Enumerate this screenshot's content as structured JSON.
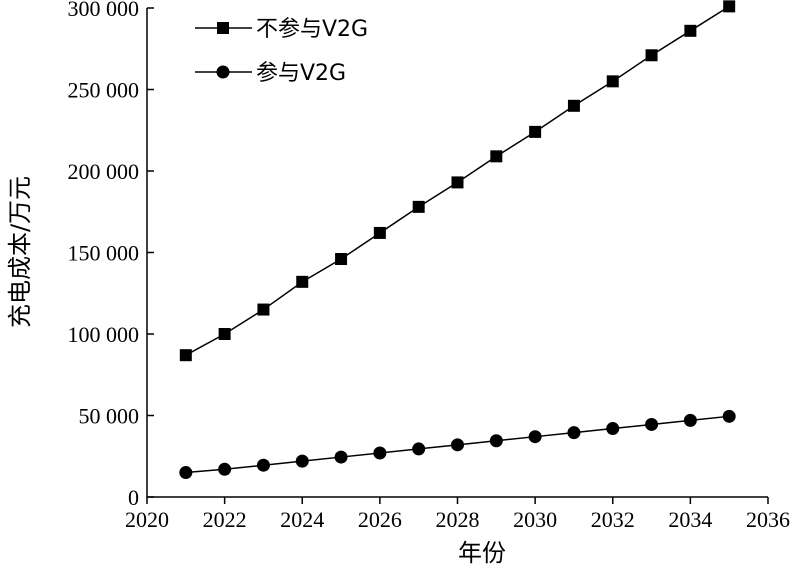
{
  "chart_data": {
    "type": "line",
    "title": "",
    "xlabel": "年份",
    "ylabel": "充电成本/万元",
    "xlim": [
      2020,
      2036
    ],
    "ylim": [
      0,
      300000
    ],
    "xticks": [
      2020,
      2022,
      2024,
      2026,
      2028,
      2030,
      2032,
      2034,
      2036
    ],
    "xtick_labels": [
      "2020",
      "2022",
      "2024",
      "2026",
      "2028",
      "2030",
      "2032",
      "2034",
      "2036"
    ],
    "yticks": [
      0,
      50000,
      100000,
      150000,
      200000,
      250000,
      300000
    ],
    "ytick_labels": [
      "0",
      "50 000",
      "100 000",
      "150 000",
      "200 000",
      "250 000",
      "300 000"
    ],
    "grid": false,
    "legend_position": "top-left",
    "x": [
      2021,
      2022,
      2023,
      2024,
      2025,
      2026,
      2027,
      2028,
      2029,
      2030,
      2031,
      2032,
      2033,
      2034,
      2035
    ],
    "series": [
      {
        "name": "不参与V2G",
        "marker": "square",
        "color": "#000000",
        "values": [
          87000,
          100000,
          115000,
          132000,
          146000,
          162000,
          178000,
          193000,
          209000,
          224000,
          240000,
          255000,
          271000,
          286000,
          301000
        ]
      },
      {
        "name": "参与V2G",
        "marker": "circle",
        "color": "#000000",
        "values": [
          15000,
          17000,
          19500,
          22000,
          24500,
          27000,
          29500,
          32000,
          34500,
          37000,
          39500,
          42000,
          44500,
          47000,
          49500
        ]
      }
    ]
  }
}
